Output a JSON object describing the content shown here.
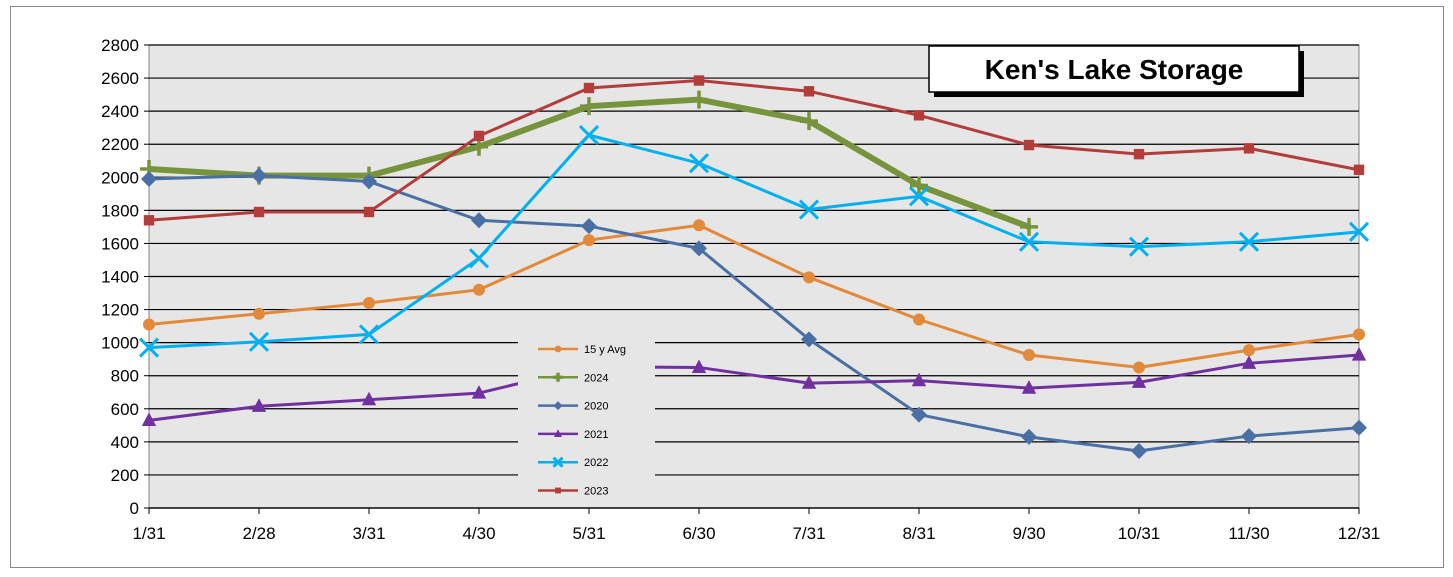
{
  "chart_data": {
    "type": "line",
    "title": "Ken's Lake Storage",
    "xlabel": "",
    "ylabel": "",
    "ylim": [
      0,
      2800
    ],
    "yticks": [
      0,
      200,
      400,
      600,
      800,
      1000,
      1200,
      1400,
      1600,
      1800,
      2000,
      2200,
      2400,
      2600,
      2800
    ],
    "categories": [
      "1/31",
      "2/28",
      "3/31",
      "4/30",
      "5/31",
      "6/30",
      "7/31",
      "8/31",
      "9/30",
      "10/31",
      "11/30",
      "12/31"
    ],
    "grid": true,
    "legend_position": "center-left",
    "series": [
      {
        "name": "15 y Avg",
        "color": "#e2893a",
        "marker": "circle",
        "values": [
          1110,
          1175,
          1240,
          1320,
          1620,
          1710,
          1395,
          1140,
          925,
          850,
          955,
          1050
        ]
      },
      {
        "name": "2024",
        "color": "#77933c",
        "marker": "plus",
        "values": [
          2050,
          2010,
          2010,
          2185,
          2430,
          2470,
          2340,
          1950,
          1700,
          null,
          null,
          null
        ]
      },
      {
        "name": "2020",
        "color": "#4a6fa5",
        "marker": "diamond",
        "values": [
          1990,
          2010,
          1975,
          1740,
          1705,
          1570,
          1020,
          565,
          430,
          345,
          435,
          485
        ]
      },
      {
        "name": "2021",
        "color": "#7030a0",
        "marker": "triangle",
        "values": [
          530,
          615,
          655,
          695,
          855,
          850,
          755,
          770,
          725,
          760,
          875,
          925
        ]
      },
      {
        "name": "2022",
        "color": "#00b0f0",
        "marker": "x",
        "values": [
          970,
          1005,
          1050,
          1510,
          2255,
          2085,
          1805,
          1885,
          1610,
          1580,
          1610,
          1670
        ]
      },
      {
        "name": "2023",
        "color": "#b33d3a",
        "marker": "square",
        "values": [
          1740,
          1790,
          1790,
          2250,
          2540,
          2585,
          2520,
          2375,
          2195,
          2140,
          2175,
          2045
        ]
      }
    ]
  }
}
